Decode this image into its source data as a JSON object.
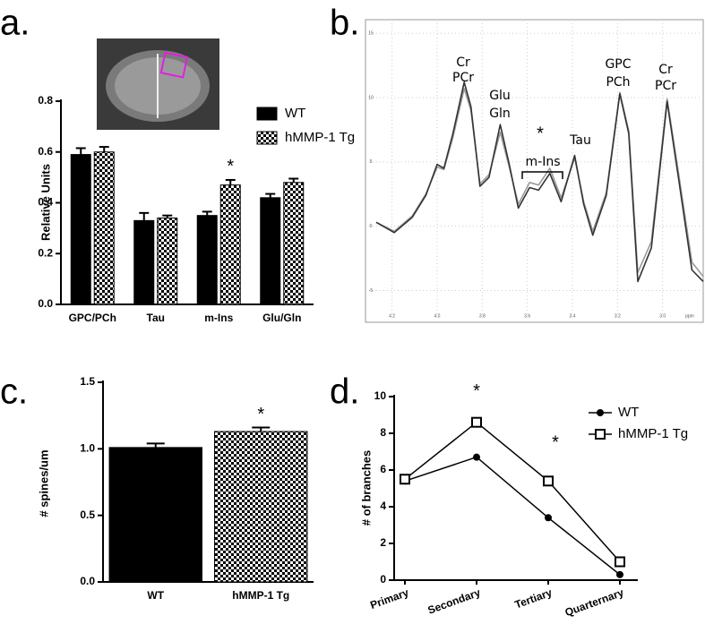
{
  "chart_data": [
    {
      "type": "bar",
      "panel_label": "a.",
      "ylabel": "Relative Units",
      "categories": [
        "GPC/PCh",
        "Tau",
        "m-Ins",
        "Glu/Gln"
      ],
      "series": [
        {
          "name": "WT",
          "color": "#000000",
          "values": [
            0.59,
            0.33,
            0.35,
            0.42
          ],
          "errors": [
            0.025,
            0.03,
            0.015,
            0.015
          ]
        },
        {
          "name": "hMMP-1 Tg",
          "color": "#000000",
          "pattern": "checker",
          "values": [
            0.6,
            0.34,
            0.47,
            0.48
          ],
          "errors": [
            0.02,
            0.01,
            0.02,
            0.015
          ]
        }
      ],
      "ylim": [
        0,
        0.8
      ],
      "yticks": [
        {
          "value": 0,
          "label": "0.0"
        },
        0.2,
        0.4,
        0.6,
        0.8
      ],
      "annotations": [
        "*"
      ]
    },
    {
      "type": "spectrum",
      "panel_label": "b.",
      "xlabel": "ppm",
      "x": [
        4.27,
        4.19,
        4.11,
        4.05,
        4.0,
        3.97,
        3.93,
        3.88,
        3.85,
        3.81,
        3.77,
        3.72,
        3.68,
        3.64,
        3.59,
        3.55,
        3.5,
        3.45,
        3.39,
        3.35,
        3.31,
        3.25,
        3.19,
        3.15,
        3.11,
        3.05,
        2.98,
        2.93,
        2.87,
        2.82
      ],
      "series": [
        {
          "color": "#333333",
          "values": [
            0.3,
            -0.5,
            0.7,
            2.4,
            4.8,
            4.5,
            7.2,
            11.2,
            9.3,
            3.1,
            3.8,
            7.9,
            4.8,
            1.4,
            3.0,
            2.8,
            4.1,
            1.9,
            5.5,
            1.7,
            -0.7,
            2.4,
            10.3,
            7.2,
            -4.3,
            -1.7,
            9.7,
            3.8,
            -3.4,
            -4.3
          ]
        },
        {
          "color": "#9a9a9a",
          "values": [
            0.3,
            -0.4,
            0.8,
            2.5,
            4.6,
            4.4,
            6.9,
            10.7,
            9.0,
            3.3,
            4.0,
            7.3,
            4.6,
            1.7,
            3.4,
            3.2,
            4.5,
            2.2,
            5.3,
            1.9,
            -0.4,
            2.6,
            10.4,
            7.4,
            -3.6,
            -1.2,
            9.9,
            4.2,
            -2.8,
            -3.9
          ]
        }
      ],
      "xlim": [
        4.27,
        2.82
      ],
      "xticks": [
        4.2,
        {
          "value": 4.0,
          "label": "4.0"
        },
        3.8,
        3.6,
        3.4,
        3.2,
        {
          "value": 3.0,
          "label": "3.0"
        }
      ],
      "ylim": [
        -6.5,
        15.5
      ],
      "yticks": [
        -5,
        0,
        5,
        10,
        15
      ],
      "grid": true,
      "peak_labels": [
        "Cr",
        "PCr",
        "Glu",
        "Gln",
        "*",
        "m-Ins",
        "Tau",
        "GPC",
        "PCh",
        "Cr",
        "PCr"
      ]
    },
    {
      "type": "bar",
      "panel_label": "c.",
      "ylabel": "# spines/um",
      "categories": [
        "WT",
        "hMMP-1 Tg"
      ],
      "series": [
        {
          "color": "#000000",
          "patterns": [
            null,
            "checker"
          ],
          "values": [
            1.01,
            1.13
          ],
          "errors": [
            0.03,
            0.03
          ]
        }
      ],
      "ylim": [
        0,
        1.5
      ],
      "yticks": [
        {
          "value": 0,
          "label": "0.0"
        },
        0.5,
        {
          "value": 1,
          "label": "1.0"
        },
        1.5
      ],
      "annotations": [
        "*"
      ]
    },
    {
      "type": "line",
      "panel_label": "d.",
      "ylabel": "# of branches",
      "categories": [
        "Primary",
        "Secondary",
        "Tertiary",
        "Quarternary"
      ],
      "series": [
        {
          "name": "WT",
          "color": "#000000",
          "marker": "circle",
          "values": [
            5.4,
            6.7,
            3.4,
            0.3
          ]
        },
        {
          "name": "hMMP-1 Tg",
          "color": "#000000",
          "marker": "square",
          "values": [
            5.5,
            8.6,
            5.4,
            1.0
          ]
        }
      ],
      "ylim": [
        0,
        10
      ],
      "yticks": [
        0,
        2,
        4,
        6,
        8,
        10
      ],
      "annotations": [
        "*",
        "*"
      ]
    }
  ]
}
